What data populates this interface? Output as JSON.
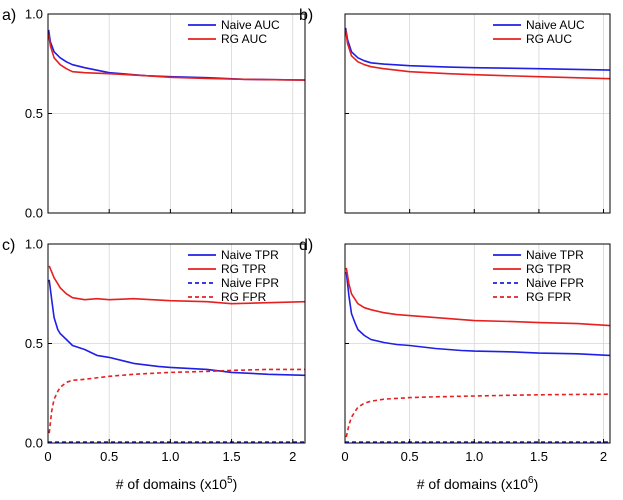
{
  "chart_data": [
    {
      "id": "a",
      "panel_label": "a)",
      "type": "line",
      "title": "",
      "xlabel": "",
      "ylabel": "",
      "xlim": [
        0,
        2.1
      ],
      "ylim": [
        0,
        1.0
      ],
      "xticks": [
        0,
        0.5,
        1.0,
        1.5,
        2
      ],
      "xtick_labels": [],
      "yticks": [
        0,
        0.5,
        1.0
      ],
      "ytick_labels": [
        "0.0",
        "0.5",
        "1.0"
      ],
      "grid": true,
      "legend_position": "top-right",
      "series": [
        {
          "name": "Naive AUC",
          "color": "#1f1fe6",
          "style": "solid",
          "x": [
            0.005,
            0.02,
            0.05,
            0.1,
            0.15,
            0.2,
            0.3,
            0.5,
            0.8,
            1.0,
            1.3,
            1.6,
            2.1
          ],
          "y": [
            0.92,
            0.86,
            0.81,
            0.78,
            0.76,
            0.745,
            0.73,
            0.705,
            0.69,
            0.685,
            0.68,
            0.672,
            0.668
          ]
        },
        {
          "name": "RG AUC",
          "color": "#e62020",
          "style": "solid",
          "x": [
            0.005,
            0.02,
            0.05,
            0.1,
            0.15,
            0.2,
            0.3,
            0.5,
            0.8,
            1.0,
            1.3,
            1.6,
            2.1
          ],
          "y": [
            0.9,
            0.84,
            0.78,
            0.745,
            0.725,
            0.71,
            0.705,
            0.7,
            0.69,
            0.682,
            0.676,
            0.672,
            0.668
          ]
        }
      ]
    },
    {
      "id": "b",
      "panel_label": "b)",
      "type": "line",
      "title": "",
      "xlabel": "",
      "ylabel": "",
      "xlim": [
        0,
        2.05
      ],
      "ylim": [
        0,
        1.0
      ],
      "xticks": [
        0,
        0.5,
        1.0,
        1.5,
        2
      ],
      "xtick_labels": [],
      "yticks": [
        0,
        0.5,
        1.0
      ],
      "ytick_labels": [],
      "grid": true,
      "legend_position": "top-right",
      "series": [
        {
          "name": "Naive AUC",
          "color": "#1f1fe6",
          "style": "solid",
          "x": [
            0.005,
            0.02,
            0.05,
            0.1,
            0.15,
            0.2,
            0.3,
            0.5,
            0.8,
            1.0,
            1.5,
            2.05
          ],
          "y": [
            0.93,
            0.87,
            0.81,
            0.78,
            0.765,
            0.755,
            0.748,
            0.74,
            0.733,
            0.73,
            0.725,
            0.718
          ]
        },
        {
          "name": "RG AUC",
          "color": "#e62020",
          "style": "solid",
          "x": [
            0.005,
            0.02,
            0.05,
            0.1,
            0.15,
            0.2,
            0.3,
            0.5,
            0.8,
            1.0,
            1.5,
            2.05
          ],
          "y": [
            0.92,
            0.85,
            0.79,
            0.76,
            0.745,
            0.735,
            0.725,
            0.71,
            0.7,
            0.695,
            0.685,
            0.675
          ]
        }
      ]
    },
    {
      "id": "c",
      "panel_label": "c)",
      "type": "line",
      "title": "",
      "xlabel": "# of domains (x10",
      "xlabel_exp": "5",
      "xlabel_end": ")",
      "ylabel": "",
      "xlim": [
        0,
        2.1
      ],
      "ylim": [
        0,
        1.0
      ],
      "xticks": [
        0,
        0.5,
        1.0,
        1.5,
        2
      ],
      "xtick_labels": [
        "0",
        "0.5",
        "1.0",
        "1.5",
        "2"
      ],
      "yticks": [
        0,
        0.5,
        1.0
      ],
      "ytick_labels": [
        "0.0",
        "0.5",
        "1.0"
      ],
      "grid": true,
      "legend_position": "top-right",
      "series": [
        {
          "name": "Naive TPR",
          "color": "#1f1fe6",
          "style": "solid",
          "x": [
            0.01,
            0.03,
            0.05,
            0.08,
            0.1,
            0.15,
            0.2,
            0.3,
            0.4,
            0.5,
            0.7,
            0.9,
            1.0,
            1.3,
            1.5,
            1.8,
            2.1
          ],
          "y": [
            0.82,
            0.72,
            0.63,
            0.57,
            0.55,
            0.52,
            0.49,
            0.47,
            0.44,
            0.43,
            0.4,
            0.385,
            0.38,
            0.37,
            0.355,
            0.345,
            0.34
          ]
        },
        {
          "name": "RG TPR",
          "color": "#e62020",
          "style": "solid",
          "x": [
            0.01,
            0.03,
            0.05,
            0.08,
            0.1,
            0.15,
            0.2,
            0.3,
            0.4,
            0.5,
            0.7,
            1.0,
            1.3,
            1.5,
            1.8,
            2.1
          ],
          "y": [
            0.89,
            0.86,
            0.83,
            0.8,
            0.78,
            0.75,
            0.73,
            0.72,
            0.725,
            0.72,
            0.725,
            0.715,
            0.71,
            0.7,
            0.705,
            0.71
          ]
        },
        {
          "name": "Naive FPR",
          "color": "#1f1fe6",
          "style": "dashed",
          "x": [
            0.0,
            2.1
          ],
          "y": [
            0.005,
            0.005
          ]
        },
        {
          "name": "RG FPR",
          "color": "#e62020",
          "style": "dashed",
          "x": [
            0.01,
            0.03,
            0.05,
            0.08,
            0.1,
            0.15,
            0.2,
            0.3,
            0.5,
            0.7,
            1.0,
            1.3,
            1.5,
            1.8,
            2.1
          ],
          "y": [
            0.05,
            0.16,
            0.22,
            0.26,
            0.28,
            0.305,
            0.315,
            0.32,
            0.335,
            0.345,
            0.355,
            0.36,
            0.365,
            0.37,
            0.37
          ]
        }
      ]
    },
    {
      "id": "d",
      "panel_label": "d)",
      "type": "line",
      "title": "",
      "xlabel": "# of domains (x10",
      "xlabel_exp": "6",
      "xlabel_end": ")",
      "ylabel": "",
      "xlim": [
        0,
        2.05
      ],
      "ylim": [
        0,
        1.0
      ],
      "xticks": [
        0,
        0.5,
        1.0,
        1.5,
        2
      ],
      "xtick_labels": [
        "0",
        "0.5",
        "1.0",
        "1.5",
        "2"
      ],
      "yticks": [
        0,
        0.5,
        1.0
      ],
      "ytick_labels": [],
      "grid": true,
      "legend_position": "top-right",
      "series": [
        {
          "name": "Naive TPR",
          "color": "#1f1fe6",
          "style": "solid",
          "x": [
            0.01,
            0.03,
            0.05,
            0.08,
            0.1,
            0.15,
            0.2,
            0.3,
            0.4,
            0.5,
            0.7,
            0.9,
            1.0,
            1.3,
            1.5,
            1.8,
            2.05
          ],
          "y": [
            0.86,
            0.74,
            0.65,
            0.6,
            0.57,
            0.54,
            0.52,
            0.505,
            0.495,
            0.49,
            0.475,
            0.465,
            0.462,
            0.458,
            0.452,
            0.448,
            0.44
          ]
        },
        {
          "name": "RG TPR",
          "color": "#e62020",
          "style": "solid",
          "x": [
            0.01,
            0.03,
            0.05,
            0.08,
            0.1,
            0.15,
            0.2,
            0.3,
            0.4,
            0.5,
            0.7,
            1.0,
            1.3,
            1.5,
            1.8,
            2.05
          ],
          "y": [
            0.88,
            0.8,
            0.75,
            0.72,
            0.7,
            0.68,
            0.67,
            0.655,
            0.645,
            0.64,
            0.63,
            0.615,
            0.61,
            0.605,
            0.6,
            0.59
          ]
        },
        {
          "name": "Naive FPR",
          "color": "#1f1fe6",
          "style": "dashed",
          "x": [
            0.0,
            2.05
          ],
          "y": [
            0.005,
            0.005
          ]
        },
        {
          "name": "RG FPR",
          "color": "#e62020",
          "style": "dashed",
          "x": [
            0.01,
            0.03,
            0.05,
            0.08,
            0.1,
            0.15,
            0.2,
            0.3,
            0.5,
            0.7,
            1.0,
            1.3,
            1.5,
            1.8,
            2.05
          ],
          "y": [
            0.03,
            0.09,
            0.13,
            0.16,
            0.18,
            0.2,
            0.21,
            0.22,
            0.228,
            0.232,
            0.236,
            0.24,
            0.242,
            0.244,
            0.245
          ]
        }
      ]
    }
  ]
}
